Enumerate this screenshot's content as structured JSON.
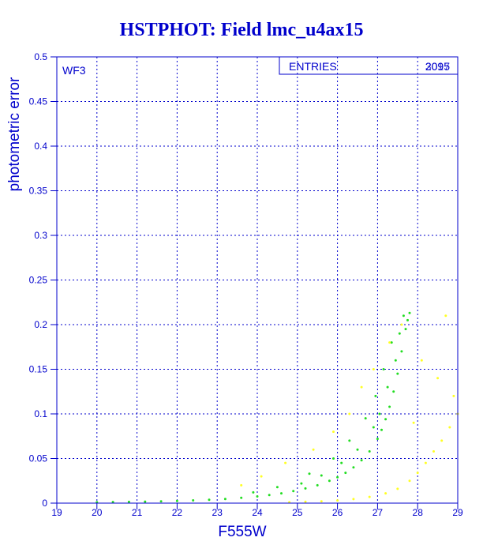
{
  "chart_data": {
    "type": "scatter",
    "title": "HSTPHOT: Field lmc_u4ax15",
    "xlabel": "F555W",
    "ylabel": "photometric error",
    "xlim": [
      19,
      29
    ],
    "ylim": [
      0,
      0.5
    ],
    "x_ticks": [
      19,
      20,
      21,
      22,
      23,
      24,
      25,
      26,
      27,
      28,
      29
    ],
    "y_ticks": [
      0,
      0.05,
      0.1,
      0.15,
      0.2,
      0.25,
      0.3,
      0.35,
      0.4,
      0.45,
      0.5
    ],
    "x_tick_labels": [
      "19",
      "20",
      "21",
      "22",
      "23",
      "24",
      "25",
      "26",
      "27",
      "28",
      "29"
    ],
    "y_tick_labels": [
      "0",
      "0.05",
      "0.1",
      "0.15",
      "0.2",
      "0.25",
      "0.3",
      "0.35",
      "0.4",
      "0.45",
      "0.5"
    ],
    "grid": true,
    "panel_label": "WF3",
    "stats_box": {
      "label": "ENTRIES",
      "values": [
        "2095",
        "3017"
      ]
    },
    "series": [
      {
        "color": "#22dd22",
        "points": [
          [
            20.0,
            0.001
          ],
          [
            20.4,
            0.0012
          ],
          [
            20.8,
            0.0014
          ],
          [
            21.2,
            0.0017
          ],
          [
            21.6,
            0.002
          ],
          [
            22.0,
            0.0025
          ],
          [
            22.4,
            0.0031
          ],
          [
            22.8,
            0.0038
          ],
          [
            23.2,
            0.0047
          ],
          [
            23.6,
            0.006
          ],
          [
            24.0,
            0.0075
          ],
          [
            24.3,
            0.009
          ],
          [
            24.6,
            0.011
          ],
          [
            24.9,
            0.0135
          ],
          [
            25.2,
            0.0165
          ],
          [
            25.5,
            0.02
          ],
          [
            25.8,
            0.025
          ],
          [
            26.0,
            0.029
          ],
          [
            26.2,
            0.034
          ],
          [
            26.4,
            0.04
          ],
          [
            26.6,
            0.048
          ],
          [
            26.8,
            0.058
          ],
          [
            27.0,
            0.072
          ],
          [
            27.1,
            0.082
          ],
          [
            27.2,
            0.094
          ],
          [
            27.3,
            0.108
          ],
          [
            27.4,
            0.125
          ],
          [
            27.5,
            0.145
          ],
          [
            27.6,
            0.17
          ],
          [
            27.7,
            0.195
          ],
          [
            27.8,
            0.213
          ],
          [
            23.9,
            0.012
          ],
          [
            24.5,
            0.018
          ],
          [
            25.1,
            0.022
          ],
          [
            25.6,
            0.031
          ],
          [
            26.1,
            0.045
          ],
          [
            26.5,
            0.06
          ],
          [
            26.9,
            0.085
          ],
          [
            27.05,
            0.1
          ],
          [
            27.25,
            0.13
          ],
          [
            27.45,
            0.16
          ],
          [
            27.55,
            0.19
          ],
          [
            27.65,
            0.21
          ],
          [
            27.75,
            0.205
          ],
          [
            27.35,
            0.18
          ],
          [
            27.15,
            0.15
          ],
          [
            26.95,
            0.12
          ],
          [
            26.7,
            0.095
          ],
          [
            26.3,
            0.07
          ],
          [
            25.9,
            0.05
          ],
          [
            25.3,
            0.033
          ]
        ]
      },
      {
        "color": "#ffff22",
        "points": [
          [
            24.8,
            0.001
          ],
          [
            25.2,
            0.0015
          ],
          [
            25.6,
            0.002
          ],
          [
            26.0,
            0.003
          ],
          [
            26.4,
            0.0045
          ],
          [
            26.8,
            0.007
          ],
          [
            27.2,
            0.011
          ],
          [
            27.5,
            0.016
          ],
          [
            27.8,
            0.025
          ],
          [
            28.0,
            0.034
          ],
          [
            28.2,
            0.045
          ],
          [
            28.4,
            0.058
          ],
          [
            28.6,
            0.07
          ],
          [
            28.8,
            0.085
          ],
          [
            29.0,
            0.1
          ],
          [
            23.6,
            0.02
          ],
          [
            24.1,
            0.03
          ],
          [
            24.7,
            0.045
          ],
          [
            25.4,
            0.06
          ],
          [
            25.9,
            0.08
          ],
          [
            26.3,
            0.1
          ],
          [
            26.6,
            0.13
          ],
          [
            26.9,
            0.15
          ],
          [
            27.3,
            0.18
          ],
          [
            27.6,
            0.2
          ],
          [
            28.1,
            0.16
          ],
          [
            28.5,
            0.14
          ],
          [
            28.7,
            0.21
          ],
          [
            28.9,
            0.12
          ],
          [
            27.9,
            0.09
          ]
        ]
      }
    ]
  }
}
